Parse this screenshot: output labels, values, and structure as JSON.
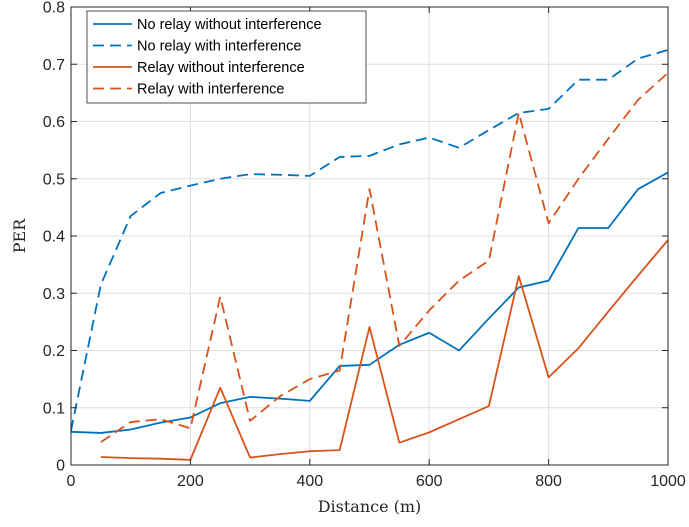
{
  "chart_data": {
    "type": "line",
    "xlabel": "Distance (m)",
    "ylabel": "PER",
    "xlim": [
      0,
      1000
    ],
    "ylim": [
      0,
      0.8
    ],
    "xticks": [
      0,
      200,
      400,
      600,
      800,
      1000
    ],
    "yticks": [
      0,
      0.1,
      0.2,
      0.3,
      0.4,
      0.5,
      0.6,
      0.7,
      0.8
    ],
    "xtick_labels": [
      "0",
      "200",
      "400",
      "600",
      "800",
      "1000"
    ],
    "ytick_labels": [
      "0",
      "0.1",
      "0.2",
      "0.3",
      "0.4",
      "0.5",
      "0.6",
      "0.7",
      "0.8"
    ],
    "grid": true,
    "legend_position": "top-left",
    "series": [
      {
        "name": "No relay without interference",
        "color": "#0072BD",
        "dash": "solid",
        "x": [
          0,
          50,
          100,
          150,
          200,
          250,
          300,
          350,
          400,
          450,
          500,
          550,
          600,
          650,
          700,
          750,
          800,
          850,
          900,
          950,
          1000
        ],
        "values": [
          0.058,
          0.056,
          0.062,
          0.074,
          0.083,
          0.108,
          0.119,
          0.116,
          0.112,
          0.173,
          0.175,
          0.21,
          0.231,
          0.2,
          0.256,
          0.31,
          0.322,
          0.414,
          0.414,
          0.482,
          0.511
        ]
      },
      {
        "name": "No relay with interference",
        "color": "#0072BD",
        "dash": "dashed",
        "x": [
          0,
          50,
          100,
          150,
          200,
          250,
          300,
          350,
          400,
          450,
          500,
          550,
          600,
          650,
          700,
          750,
          800,
          850,
          900,
          950,
          1000
        ],
        "values": [
          0.06,
          0.315,
          0.435,
          0.475,
          0.488,
          0.5,
          0.508,
          0.507,
          0.505,
          0.538,
          0.54,
          0.56,
          0.572,
          0.554,
          0.585,
          0.615,
          0.622,
          0.673,
          0.673,
          0.71,
          0.725
        ]
      },
      {
        "name": "Relay without interference",
        "color": "#D95319",
        "dash": "solid",
        "x": [
          50,
          100,
          150,
          200,
          250,
          300,
          350,
          400,
          450,
          500,
          550,
          600,
          650,
          700,
          750,
          800,
          850,
          900,
          950,
          1000
        ],
        "values": [
          0.014,
          0.012,
          0.011,
          0.009,
          0.135,
          0.013,
          0.019,
          0.024,
          0.026,
          0.241,
          0.039,
          0.057,
          0.08,
          0.103,
          0.33,
          0.153,
          0.204,
          0.268,
          0.331,
          0.393
        ]
      },
      {
        "name": "Relay with interference",
        "color": "#D95319",
        "dash": "dashed",
        "x": [
          50,
          100,
          150,
          200,
          250,
          300,
          350,
          400,
          450,
          500,
          550,
          600,
          650,
          700,
          750,
          800,
          850,
          900,
          950,
          1000
        ],
        "values": [
          0.04,
          0.075,
          0.08,
          0.064,
          0.294,
          0.077,
          0.12,
          0.15,
          0.165,
          0.482,
          0.208,
          0.27,
          0.322,
          0.357,
          0.615,
          0.422,
          0.5,
          0.57,
          0.638,
          0.685
        ]
      }
    ]
  }
}
